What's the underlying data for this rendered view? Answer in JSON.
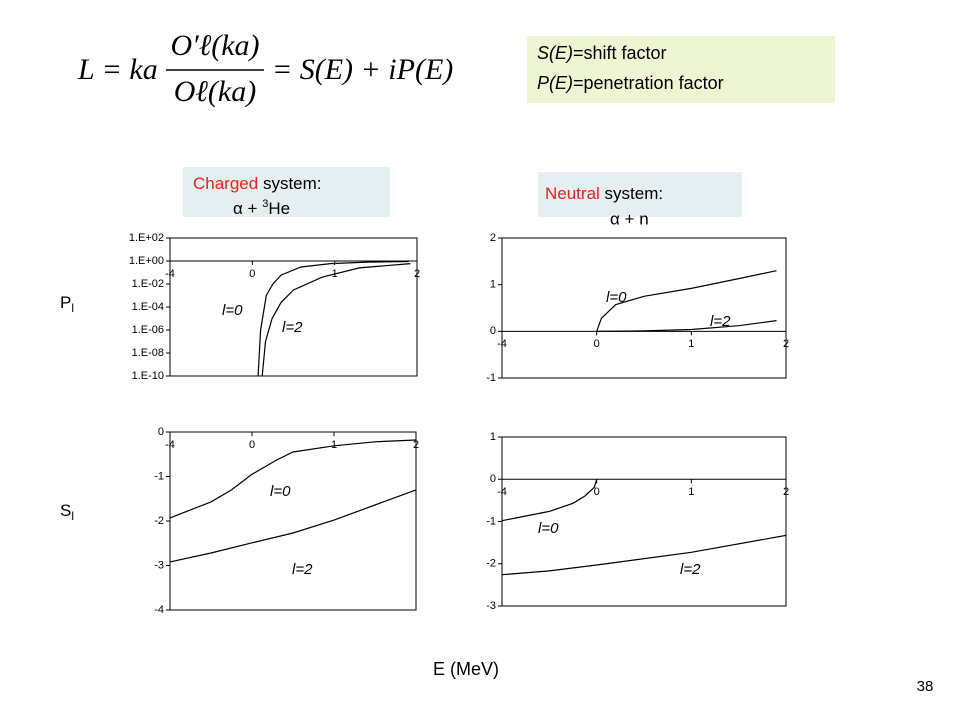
{
  "slide": {
    "formula": {
      "lhs": "L = ka",
      "numerator": "O′ℓ(ka)",
      "denominator": "Oℓ(ka)",
      "rhs": "= S(E) + iP(E)"
    },
    "legend": [
      {
        "symbol": "S(E)",
        "text": "=shift factor"
      },
      {
        "symbol": "P(E)",
        "text": "=penetration factor"
      }
    ],
    "charged": {
      "word": "Charged",
      "rest": " system:",
      "reaction": "α + ",
      "sup": "3",
      "nucleus": "He"
    },
    "neutral": {
      "word": "Neutral",
      "rest": " system:",
      "reaction": "α + n"
    },
    "row_labels": [
      {
        "letter": "P",
        "sub": "l"
      },
      {
        "letter": "S",
        "sub": "l"
      }
    ],
    "x_label": "E (MeV)",
    "page_number": "38"
  },
  "chart_data": [
    {
      "type": "line",
      "ylog": true,
      "xticks": [
        -4,
        0,
        1,
        2
      ],
      "xlim": [
        -4,
        2
      ],
      "ylim": [
        1e-10,
        100
      ],
      "yticks": [
        {
          "value": 100,
          "label": "1.E+02"
        },
        {
          "value": 1,
          "label": "1.E+00"
        },
        {
          "value": 0.01,
          "label": "1.E-02"
        },
        {
          "value": 0.0001,
          "label": "1.E-04"
        },
        {
          "value": 1e-06,
          "label": "1.E-06"
        },
        {
          "value": 1e-08,
          "label": "1.E-08"
        },
        {
          "value": 1e-10,
          "label": "1.E-10"
        }
      ],
      "series": [
        {
          "name": "l=0",
          "color": "#000000",
          "x": [
            0.07,
            0.1,
            0.17,
            0.25,
            0.35,
            0.59,
            0.95,
            1.4,
            1.9
          ],
          "values": [
            1e-10,
            1e-06,
            0.001,
            0.01,
            0.06,
            0.3,
            0.6,
            0.8,
            0.9
          ]
        },
        {
          "name": "l=2",
          "color": "#000000",
          "x": [
            0.12,
            0.16,
            0.24,
            0.35,
            0.5,
            0.85,
            1.3,
            1.92
          ],
          "values": [
            1e-10,
            1e-07,
            1e-05,
            0.00025,
            0.003,
            0.04,
            0.25,
            0.6
          ]
        }
      ]
    },
    {
      "type": "line",
      "ylog": false,
      "xticks": [
        -4,
        0,
        1,
        2
      ],
      "xlim": [
        -4,
        2
      ],
      "ylim": [
        -1,
        2
      ],
      "yticks": [
        2,
        1,
        0,
        -1
      ],
      "series": [
        {
          "name": "l=0",
          "color": "#000000",
          "x": [
            0,
            0.05,
            0.2,
            0.5,
            1,
            1.5,
            1.9
          ],
          "values": [
            0,
            0.28,
            0.57,
            0.75,
            0.92,
            1.13,
            1.3
          ]
        },
        {
          "name": "l=2",
          "color": "#000000",
          "x": [
            0,
            0.5,
            1,
            1.5,
            1.9
          ],
          "values": [
            0,
            0.01,
            0.04,
            0.12,
            0.23
          ]
        }
      ]
    },
    {
      "type": "line",
      "ylog": false,
      "xticks": [
        -4,
        0,
        1,
        2
      ],
      "xlim": [
        -4,
        2
      ],
      "ylim": [
        -4,
        0
      ],
      "yticks": [
        0,
        -1,
        -2,
        -3,
        -4
      ],
      "series": [
        {
          "name": "l=0",
          "color": "#000000",
          "x": [
            -4,
            -2,
            -1,
            0,
            0.3,
            0.5,
            1,
            1.5,
            2
          ],
          "values": [
            -1.93,
            -1.57,
            -1.3,
            -0.95,
            -0.63,
            -0.45,
            -0.31,
            -0.22,
            -0.18
          ]
        },
        {
          "name": "l=2",
          "color": "#000000",
          "x": [
            -4,
            -2,
            0,
            0.5,
            1,
            1.5,
            2
          ],
          "values": [
            -2.92,
            -2.72,
            -2.49,
            -2.27,
            -1.98,
            -1.64,
            -1.3
          ]
        }
      ]
    },
    {
      "type": "line",
      "ylog": false,
      "xticks": [
        -4,
        0,
        1,
        2
      ],
      "xlim": [
        -4,
        2
      ],
      "ylim": [
        -3,
        1
      ],
      "yticks": [
        1,
        0,
        -1,
        -2,
        -3
      ],
      "series": [
        {
          "name": "l=0",
          "color": "#000000",
          "x": [
            -4,
            -2,
            -1,
            -0.5,
            -0.1,
            0
          ],
          "values": [
            -0.98,
            -0.76,
            -0.57,
            -0.4,
            -0.19,
            0
          ]
        },
        {
          "name": "l=2",
          "color": "#000000",
          "x": [
            -4,
            -2,
            0,
            1,
            2
          ],
          "values": [
            -2.26,
            -2.17,
            -2.03,
            -1.73,
            -1.33
          ]
        }
      ]
    }
  ]
}
